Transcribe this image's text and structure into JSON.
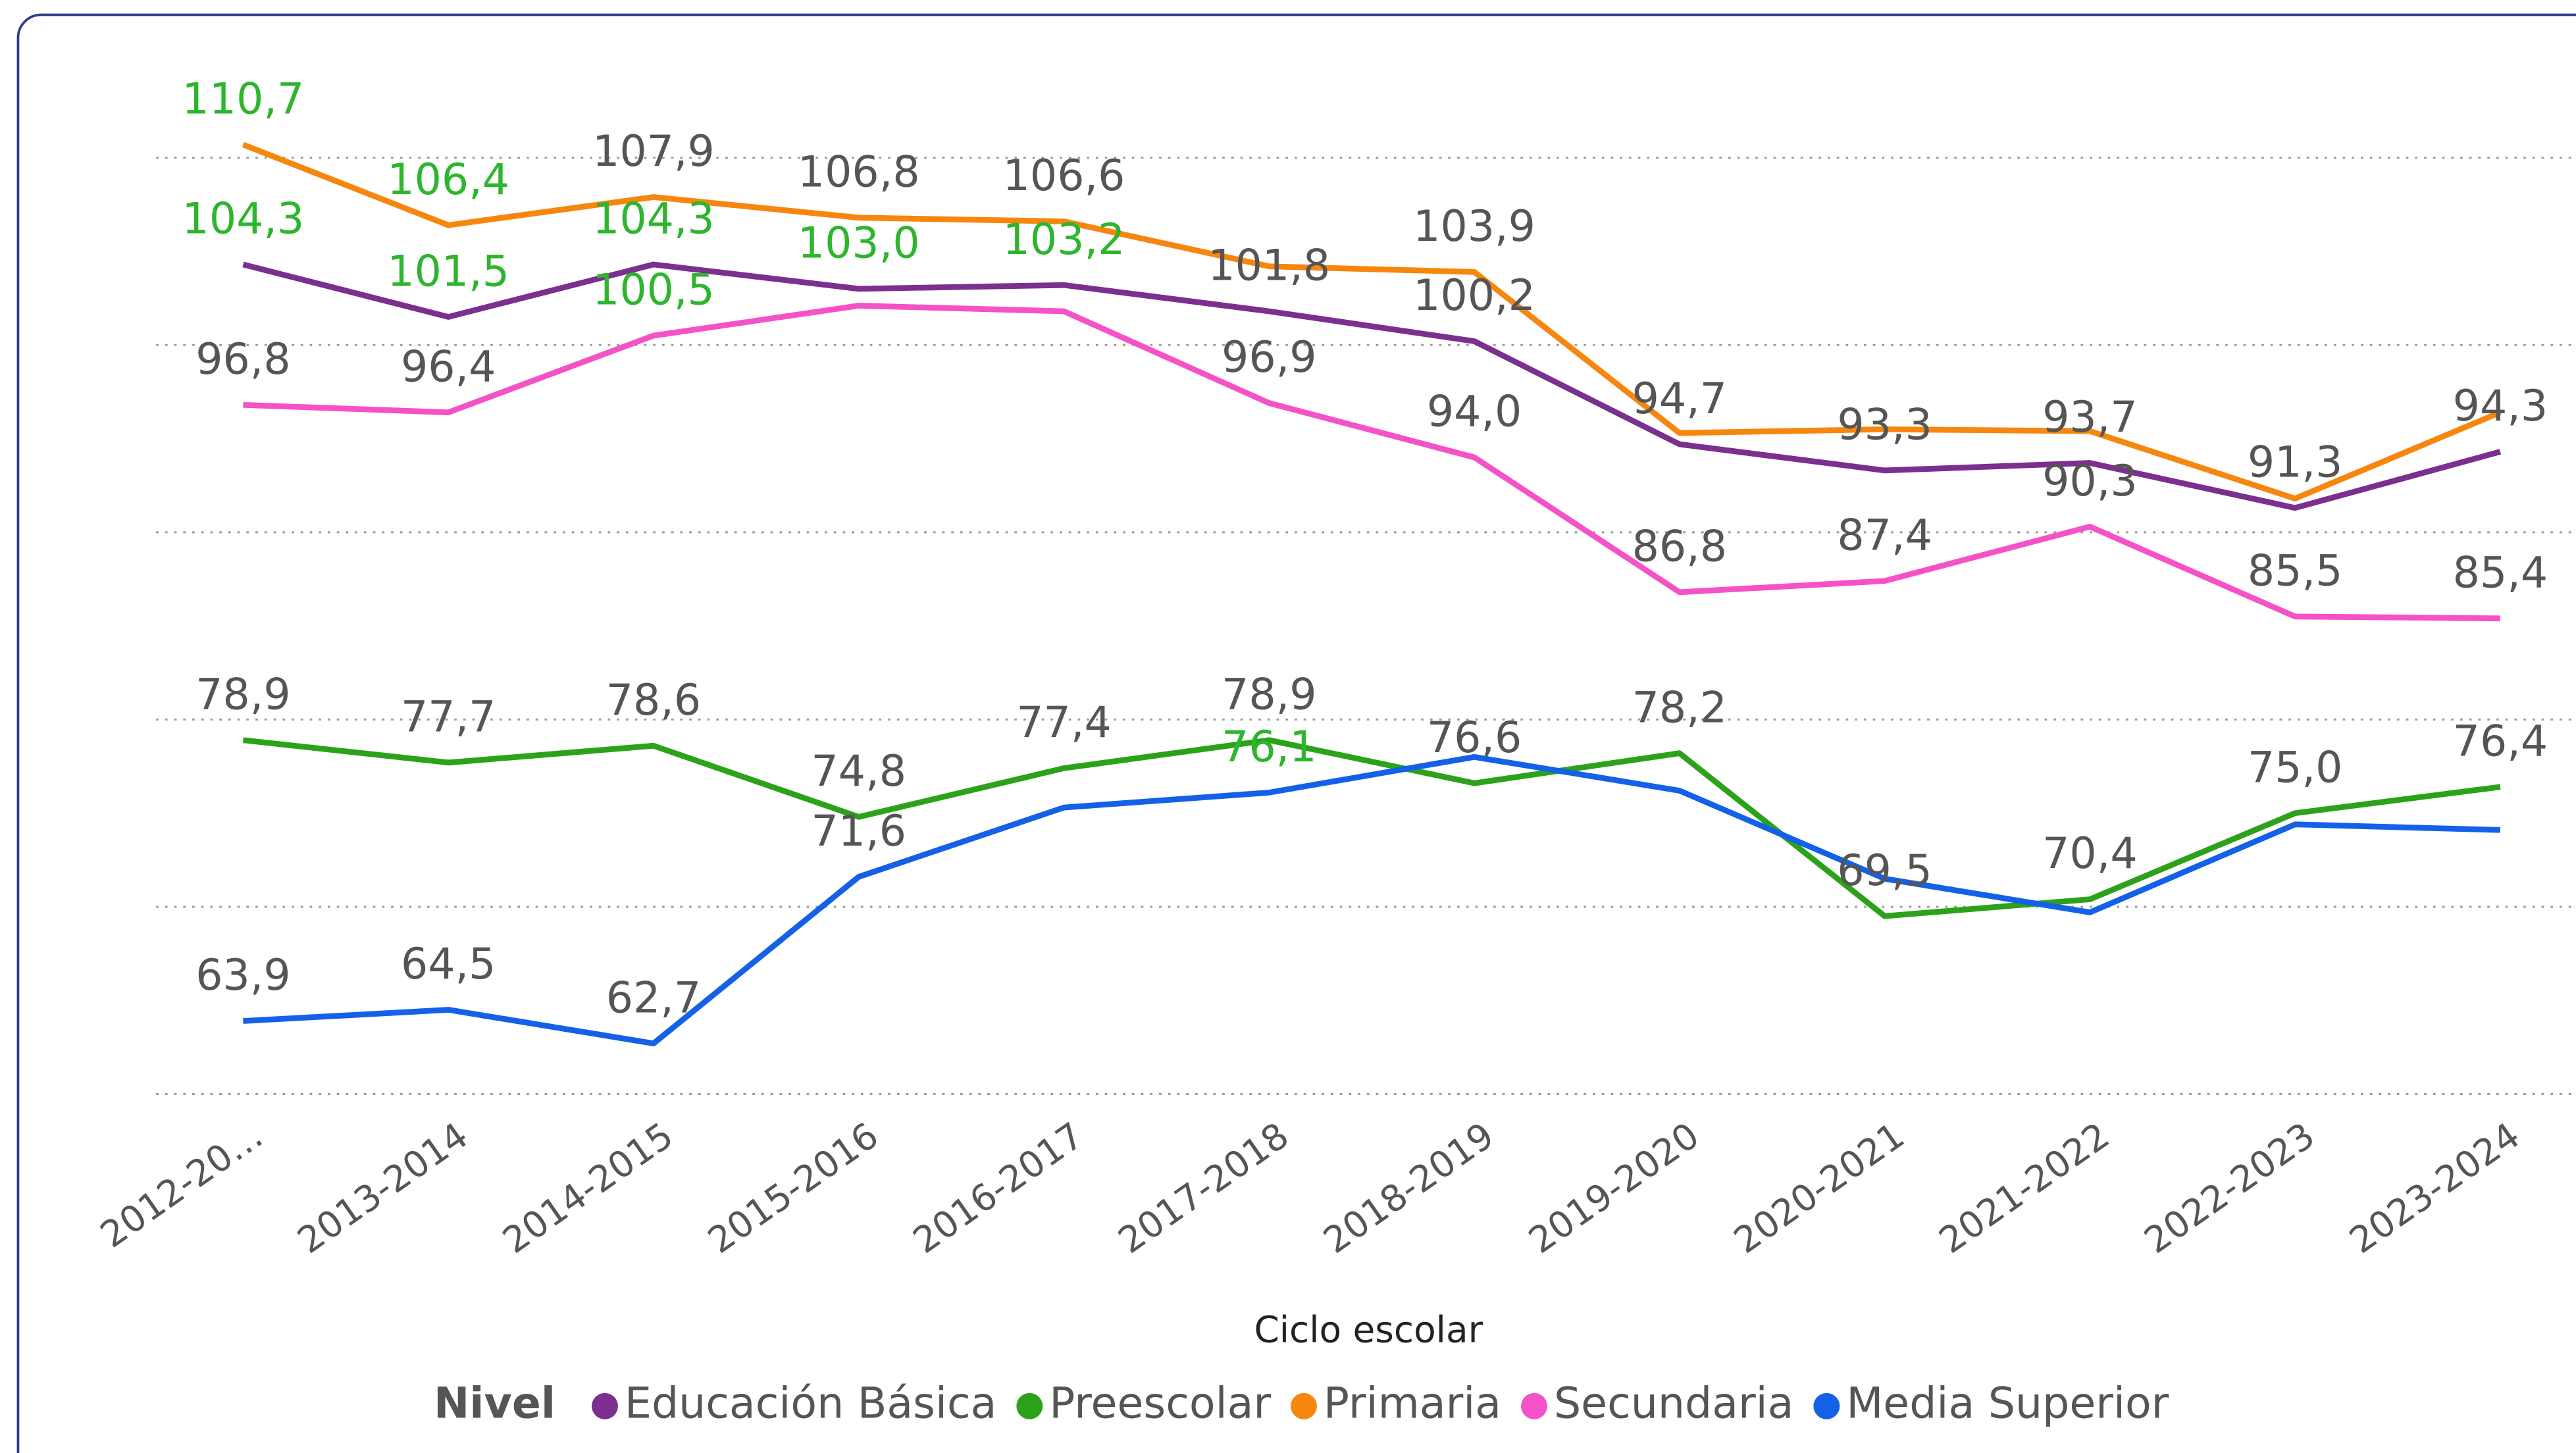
{
  "chart_data": {
    "type": "line",
    "x_label": "Ciclo escolar",
    "legend_title": "Nivel",
    "legend_position": "bottom",
    "categories": [
      "2012-20…",
      "2013-2014",
      "2014-2015",
      "2015-2016",
      "2016-2017",
      "2017-2018",
      "2018-2019",
      "2019-2020",
      "2020-2021",
      "2021-2022",
      "2022-2023",
      "2023-2024"
    ],
    "ylim": [
      58,
      117
    ],
    "yticks": [
      60,
      70,
      80,
      90,
      100,
      110
    ],
    "grid": true,
    "series": [
      {
        "name": "Educación Básica",
        "color": "#7b2f8e",
        "values": [
          104.3,
          101.5,
          104.3,
          103.0,
          103.2,
          101.8,
          100.2,
          94.7,
          93.3,
          93.7,
          91.3,
          94.3
        ],
        "value_labels": [
          "104,3",
          "101,5",
          "104,3",
          "103,0",
          "103,2",
          "101,8",
          "100,2",
          "94,7",
          "93,3",
          "93,7",
          "91,3",
          "94,3"
        ],
        "value_label_colors": [
          "#2db52d",
          "#2db52d",
          "#2db52d",
          "#2db52d",
          "#2db52d",
          "#555555",
          "#555555",
          "#555555",
          "#555555",
          "#555555",
          "#555555",
          "#555555"
        ]
      },
      {
        "name": "Preescolar",
        "color": "#2ca21a",
        "values": [
          78.9,
          77.7,
          78.6,
          74.8,
          77.4,
          78.9,
          76.6,
          78.2,
          69.5,
          70.4,
          75.0,
          76.4
        ],
        "value_labels": [
          "78,9",
          "77,7",
          "78,6",
          "74,8",
          "77,4",
          "78,9",
          "76,6",
          "78,2",
          "69,5",
          "70,4",
          "75,0",
          "76,4"
        ],
        "value_label_colors": [
          "#555555",
          "#555555",
          "#555555",
          "#555555",
          "#555555",
          "#555555",
          "#555555",
          "#555555",
          "#555555",
          "#555555",
          "#555555",
          "#555555"
        ]
      },
      {
        "name": "Primaria",
        "color": "#f7860f",
        "values": [
          110.7,
          106.4,
          107.9,
          106.8,
          106.6,
          104.2,
          103.9,
          95.3,
          95.5,
          95.4,
          91.8,
          96.4
        ],
        "value_labels": [
          "110,7",
          "106,4",
          "107,9",
          "106,8",
          "106,6",
          null,
          "103,9",
          null,
          null,
          null,
          null,
          null
        ],
        "value_label_colors": [
          "#2db52d",
          "#2db52d",
          "#555555",
          "#555555",
          "#555555",
          null,
          "#555555",
          null,
          null,
          null,
          null,
          null
        ]
      },
      {
        "name": "Secundaria",
        "color": "#f552c8",
        "values": [
          96.8,
          96.4,
          100.5,
          102.1,
          101.8,
          96.9,
          94.0,
          86.8,
          87.4,
          90.3,
          85.5,
          85.4
        ],
        "value_labels": [
          "96,8",
          "96,4",
          "100,5",
          null,
          null,
          "96,9",
          "94,0",
          "86,8",
          "87,4",
          "90,3",
          "85,5",
          "85,4"
        ],
        "value_label_colors": [
          "#555555",
          "#555555",
          "#2db52d",
          null,
          null,
          "#555555",
          "#555555",
          "#555555",
          "#555555",
          "#555555",
          "#555555",
          "#555555"
        ]
      },
      {
        "name": "Media Superior",
        "color": "#1461e8",
        "values": [
          63.9,
          64.5,
          62.7,
          71.6,
          75.3,
          76.1,
          78.0,
          76.2,
          71.5,
          69.7,
          74.4,
          74.1
        ],
        "value_labels": [
          "63,9",
          "64,5",
          "62,7",
          "71,6",
          null,
          "76,1",
          null,
          null,
          null,
          null,
          null,
          null
        ],
        "value_label_colors": [
          "#555555",
          "#555555",
          "#555555",
          "#555555",
          null,
          "#2db52d",
          null,
          null,
          null,
          null,
          null,
          null
        ]
      }
    ]
  }
}
